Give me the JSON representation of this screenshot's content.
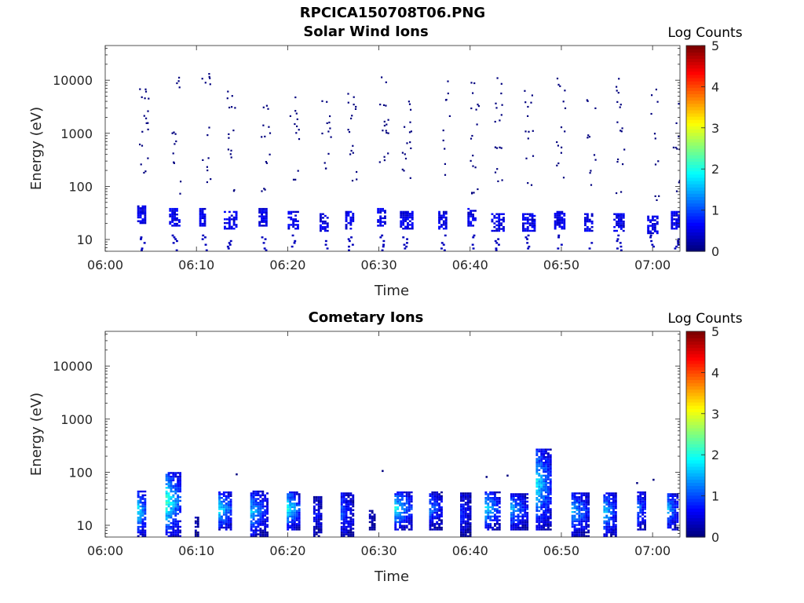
{
  "figure": {
    "title": "RPCICA150708T06.PNG"
  },
  "colormap": [
    "#00007f",
    "#0000ff",
    "#007fff",
    "#00ffff",
    "#7fff7f",
    "#ffff00",
    "#ff7f00",
    "#ff0000",
    "#7f0000"
  ],
  "chart_data": [
    {
      "type": "heatmap",
      "title": "Solar Wind Ions",
      "xlabel": "Time",
      "ylabel": "Energy (eV)",
      "yscale": "log",
      "ylim": [
        6,
        45000
      ],
      "xlim_minutes": [
        0,
        63
      ],
      "x_ticks": [
        "06:00",
        "06:10",
        "06:20",
        "06:30",
        "06:40",
        "06:50",
        "07:00"
      ],
      "x_tick_minutes": [
        0,
        10,
        20,
        30,
        40,
        50,
        60
      ],
      "y_ticks": [
        "10",
        "100",
        "1000",
        "10000"
      ],
      "y_tick_values": [
        10,
        100,
        1000,
        10000
      ],
      "colorbar": {
        "label": "Log Counts",
        "ticks": [
          "0",
          "1",
          "2",
          "3",
          "4",
          "5"
        ],
        "range": [
          0,
          5
        ]
      },
      "dominant_level": 0.3,
      "bursts": [
        {
          "t": 3.5,
          "low_e": 28,
          "low_w": 0.8,
          "high": [
            250,
            900,
            2000,
            3000,
            5000,
            6000
          ],
          "spike": 10
        },
        {
          "t": 7.0,
          "low_e": 25,
          "low_w": 1.2,
          "high": [
            100,
            400,
            700,
            1500,
            8000
          ],
          "spike": 10
        },
        {
          "t": 10.3,
          "low_e": 25,
          "low_w": 0.6,
          "high": [
            120,
            300,
            1200,
            8000,
            12000
          ],
          "spike": 10
        },
        {
          "t": 13.0,
          "low_e": 22,
          "low_w": 1.5,
          "high": [
            80,
            400,
            1000,
            3000,
            6000
          ],
          "spike": 10
        },
        {
          "t": 16.8,
          "low_e": 25,
          "low_w": 0.8,
          "high": [
            100,
            300,
            800,
            2000,
            4000
          ],
          "spike": 10
        },
        {
          "t": 20.0,
          "low_e": 22,
          "low_w": 1.2,
          "high": [
            150,
            1000,
            2000,
            4000
          ],
          "spike": 10
        },
        {
          "t": 23.5,
          "low_e": 20,
          "low_w": 0.8,
          "high": [
            300,
            1000,
            1800,
            4000
          ],
          "spike": 8
        },
        {
          "t": 26.3,
          "low_e": 22,
          "low_w": 0.8,
          "high": [
            150,
            600,
            1500,
            3000,
            4000
          ],
          "spike": 10
        },
        {
          "t": 29.8,
          "low_e": 25,
          "low_w": 1.0,
          "high": [
            300,
            900,
            2000,
            5000,
            9000
          ],
          "spike": 10
        },
        {
          "t": 32.3,
          "low_e": 22,
          "low_w": 1.5,
          "high": [
            200,
            400,
            700,
            1500,
            4000
          ],
          "spike": 10
        },
        {
          "t": 36.5,
          "low_e": 22,
          "low_w": 0.8,
          "high": [
            200,
            600,
            1500,
            4000,
            7000
          ],
          "spike": 10
        },
        {
          "t": 39.7,
          "low_e": 25,
          "low_w": 0.8,
          "high": [
            100,
            300,
            1200,
            2500,
            7000
          ],
          "spike": 10
        },
        {
          "t": 42.3,
          "low_e": 20,
          "low_w": 1.5,
          "high": [
            150,
            500,
            1500,
            3000,
            8000
          ],
          "spike": 10
        },
        {
          "t": 45.7,
          "low_e": 20,
          "low_w": 1.5,
          "high": [
            100,
            400,
            900,
            3000,
            8000
          ],
          "spike": 10
        },
        {
          "t": 49.2,
          "low_e": 22,
          "low_w": 1.2,
          "high": [
            200,
            600,
            1500,
            3000,
            9000
          ],
          "spike": 10
        },
        {
          "t": 52.5,
          "low_e": 20,
          "low_w": 1.0,
          "high": [
            150,
            300,
            1200,
            3000
          ],
          "spike": 8
        },
        {
          "t": 55.7,
          "low_e": 20,
          "low_w": 1.2,
          "high": [
            100,
            400,
            1500,
            3000,
            9000
          ],
          "spike": 10
        },
        {
          "t": 59.4,
          "low_e": 18,
          "low_w": 1.2,
          "high": [
            80,
            250,
            1000,
            3000,
            6000
          ],
          "spike": 10
        },
        {
          "t": 62.0,
          "low_e": 22,
          "low_w": 0.8,
          "high": [
            100,
            400,
            1200,
            3000,
            6000
          ],
          "spike": 10
        }
      ]
    },
    {
      "type": "heatmap",
      "title": "Cometary Ions",
      "xlabel": "Time",
      "ylabel": "Energy (eV)",
      "yscale": "log",
      "ylim": [
        6,
        45000
      ],
      "xlim_minutes": [
        0,
        63
      ],
      "x_ticks": [
        "06:00",
        "06:10",
        "06:20",
        "06:30",
        "06:40",
        "06:50",
        "07:00"
      ],
      "x_tick_minutes": [
        0,
        10,
        20,
        30,
        40,
        50,
        60
      ],
      "y_ticks": [
        "10",
        "100",
        "1000",
        "10000"
      ],
      "y_tick_values": [
        10,
        100,
        1000,
        10000
      ],
      "colorbar": {
        "label": "Log Counts",
        "ticks": [
          "0",
          "1",
          "2",
          "3",
          "4",
          "5"
        ],
        "range": [
          0,
          5
        ]
      },
      "bursts": [
        {
          "t": 3.5,
          "e_low": 6,
          "e_high": 42,
          "w": 1.0,
          "peak": 1.9
        },
        {
          "t": 6.6,
          "e_low": 6,
          "e_high": 95,
          "w": 1.6,
          "peak": 2.2
        },
        {
          "t": 9.8,
          "e_low": 6,
          "e_high": 14,
          "w": 0.5,
          "peak": 0.3
        },
        {
          "t": 12.4,
          "e_low": 8,
          "e_high": 42,
          "w": 1.5,
          "peak": 1.9
        },
        {
          "t": 15.9,
          "e_low": 6,
          "e_high": 42,
          "w": 1.8,
          "peak": 1.6
        },
        {
          "t": 19.9,
          "e_low": 8,
          "e_high": 42,
          "w": 1.5,
          "peak": 2.0
        },
        {
          "t": 22.8,
          "e_low": 6,
          "e_high": 35,
          "w": 1.0,
          "peak": 0.7
        },
        {
          "t": 25.8,
          "e_low": 6,
          "e_high": 40,
          "w": 1.3,
          "peak": 1.1
        },
        {
          "t": 28.9,
          "e_low": 8,
          "e_high": 18,
          "w": 0.7,
          "peak": 0.3
        },
        {
          "t": 31.7,
          "e_low": 8,
          "e_high": 42,
          "w": 1.8,
          "peak": 1.9
        },
        {
          "t": 35.5,
          "e_low": 8,
          "e_high": 42,
          "w": 1.4,
          "peak": 1.2
        },
        {
          "t": 38.9,
          "e_low": 6,
          "e_high": 40,
          "w": 1.1,
          "peak": 0.8
        },
        {
          "t": 41.6,
          "e_low": 8,
          "e_high": 42,
          "w": 1.6,
          "peak": 1.8
        },
        {
          "t": 44.4,
          "e_low": 8,
          "e_high": 40,
          "w": 1.8,
          "peak": 1.5
        },
        {
          "t": 47.2,
          "e_low": 8,
          "e_high": 270,
          "w": 1.6,
          "peak": 1.9
        },
        {
          "t": 51.1,
          "e_low": 6,
          "e_high": 40,
          "w": 1.8,
          "peak": 1.6
        },
        {
          "t": 54.6,
          "e_low": 6,
          "e_high": 40,
          "w": 1.4,
          "peak": 1.7
        },
        {
          "t": 58.3,
          "e_low": 8,
          "e_high": 42,
          "w": 1.0,
          "peak": 1.2
        },
        {
          "t": 61.6,
          "e_low": 8,
          "e_high": 40,
          "w": 1.2,
          "peak": 1.5
        }
      ],
      "isolated_points": [
        {
          "t": 14.3,
          "e": 95
        },
        {
          "t": 30.3,
          "e": 110
        },
        {
          "t": 41.7,
          "e": 85
        },
        {
          "t": 44.0,
          "e": 90
        },
        {
          "t": 58.2,
          "e": 65
        },
        {
          "t": 60.0,
          "e": 75
        }
      ]
    }
  ]
}
